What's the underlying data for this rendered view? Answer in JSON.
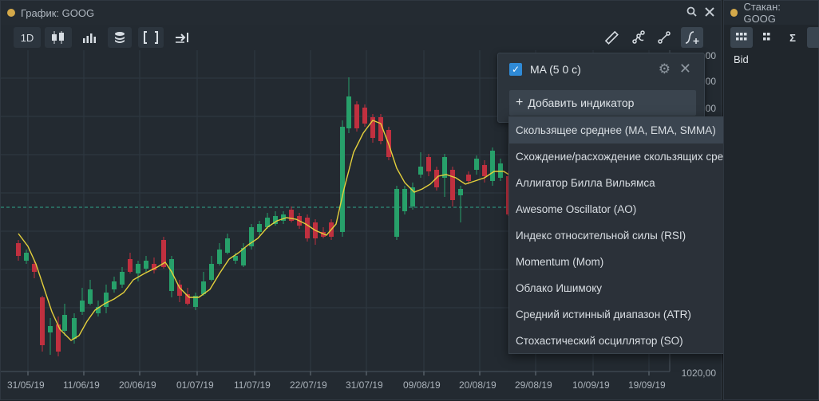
{
  "chart_window": {
    "title": "График: GOOG",
    "search_icon": "search-icon",
    "close_icon": "close-icon",
    "toolbar": {
      "timeframe": "1D",
      "chart_type_icon": "candlestick-icon",
      "volume_icon": "bar-volume-icon",
      "layers_icon": "layers-icon",
      "fit_icon": "brackets-icon",
      "scroll_icon": "scroll-to-end-icon",
      "ruler_icon": "ruler-icon",
      "drawing_icon": "drawing-path-icon",
      "line_icon": "trend-line-icon",
      "indicator_icon": "add-indicator-icon"
    }
  },
  "book_window": {
    "title": "Стакан: GOOG",
    "column_bid": "Bid",
    "sigma": "Σ"
  },
  "indicator_panel": {
    "active_indicator": "MA (5 0 c)",
    "add_label": "Добавить индикатор",
    "options": [
      "Скользящее среднее (MA, EMA, SMMA)",
      "Схождение/расхождение скользящих средних (MACD)",
      "Аллигатор Билла Вильямса",
      "Awesome Oscillator (AO)",
      "Индекс относительной силы (RSI)",
      "Momentum (Mom)",
      "Облако Ишимоку",
      "Средний истинный диапазон (ATR)",
      "Стохастический осциллятор (SO)"
    ]
  },
  "chart_data": {
    "type": "candlestick",
    "symbol": "GOOG",
    "x_tick_labels": [
      "31/05/19",
      "11/06/19",
      "20/06/19",
      "01/07/19",
      "11/07/19",
      "22/07/19",
      "31/07/19",
      "09/08/19",
      "20/08/19",
      "29/08/19",
      "10/09/19",
      "19/09/19"
    ],
    "y_tick_labels_visible": [
      "1020,00"
    ],
    "y_partial_labels": [
      "00",
      "00",
      "00"
    ],
    "colors": {
      "up": "#27a06a",
      "down": "#c0303f",
      "ma": "#e4d03c",
      "grid": "#2f3943",
      "dashed": "#2fa58c"
    },
    "ma_indicator": "MA (5 0 c)",
    "candles_close_trend": [
      1090,
      1036,
      1050,
      1080,
      1101,
      1110,
      1122,
      1079,
      1085,
      1140,
      1150,
      1144,
      1194,
      1205,
      1200,
      1210,
      1200,
      1210,
      1240,
      1250,
      1225,
      1211,
      1180,
      1190,
      1200,
      1203,
      1222,
      1192,
      1200,
      1220
    ]
  }
}
